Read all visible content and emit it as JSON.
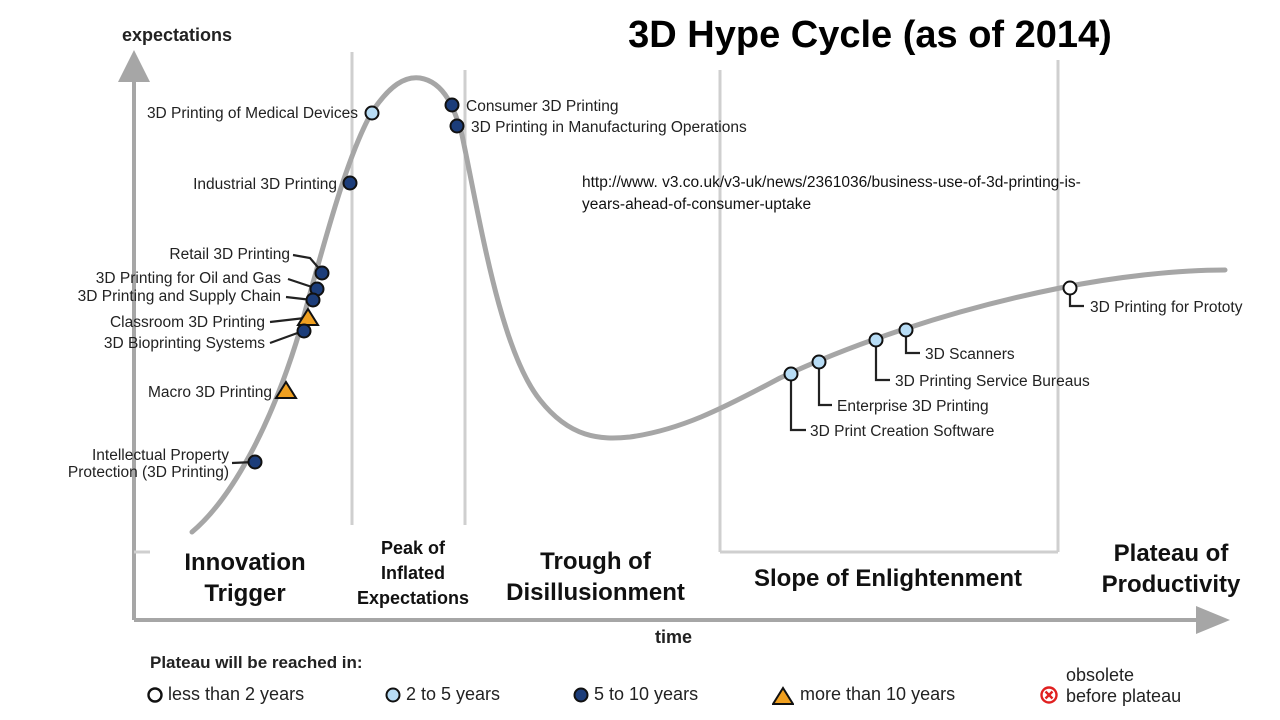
{
  "title": "3D Hype Cycle (as of 2014)",
  "source_url_line1": "http://www. v3.co.uk/v3-uk/news/2361036/business-use-of-3d-printing-is-",
  "source_url_line2": "years-ahead-of-consumer-uptake",
  "axes": {
    "y_label": "expectations",
    "x_label": "time"
  },
  "phases": {
    "innovation_line1": "Innovation",
    "innovation_line2": "Trigger",
    "peak_line1": "Peak of",
    "peak_line2": "Inflated",
    "peak_line3": "Expectations",
    "trough_line1": "Trough of",
    "trough_line2": "Disillusionment",
    "slope": "Slope of Enlightenment",
    "plateau_line1": "Plateau of",
    "plateau_line2": "Productivity"
  },
  "technologies": [
    {
      "name": "3D Printing of Medical Devices",
      "years": "2 to 5 years"
    },
    {
      "name": "Consumer 3D Printing",
      "years": "5 to 10 years"
    },
    {
      "name": "3D Printing in Manufacturing Operations",
      "years": "5 to 10 years"
    },
    {
      "name": "Industrial 3D Printing",
      "years": "5 to 10 years"
    },
    {
      "name": "Retail 3D Printing",
      "years": "5 to 10 years"
    },
    {
      "name": "3D Printing for Oil and Gas",
      "years": "5 to 10 years"
    },
    {
      "name": "3D Printing and Supply Chain",
      "years": "5 to 10 years"
    },
    {
      "name": "Classroom 3D Printing",
      "years": "more than 10 years"
    },
    {
      "name": "3D Bioprinting Systems",
      "years": "5 to 10 years"
    },
    {
      "name": "Macro 3D Printing",
      "years": "more than 10 years"
    },
    {
      "name_line1": "Intellectual Property",
      "name_line2": "Protection (3D Printing)",
      "years": "5 to 10 years"
    },
    {
      "name": "3D Scanners",
      "years": "2 to 5 years"
    },
    {
      "name": "3D Printing Service Bureaus",
      "years": "2 to 5 years"
    },
    {
      "name": "Enterprise 3D Printing",
      "years": "2 to 5 years"
    },
    {
      "name": "3D Print Creation Software",
      "years": "2 to 5 years"
    },
    {
      "name": "3D Printing for Prototy",
      "years": "less than 2 years"
    }
  ],
  "legend": {
    "title": "Plateau will be reached in:",
    "less_2": "less than 2 years",
    "two_5": "2 to 5 years",
    "five_10": "5 to 10 years",
    "more_10": "more than 10 years",
    "obsolete_line1": "obsolete",
    "obsolete_line2": "before plateau"
  },
  "colors": {
    "curve": "#a6a6a6",
    "axis": "#a6a6a6",
    "divider": "#cfcfcf",
    "less_2_fill": "#ffffff",
    "two_5_fill": "#b7dcf5",
    "five_10_fill": "#1c3d7a",
    "more_10_fill": "#f0a020",
    "obsolete": "#e02020"
  }
}
